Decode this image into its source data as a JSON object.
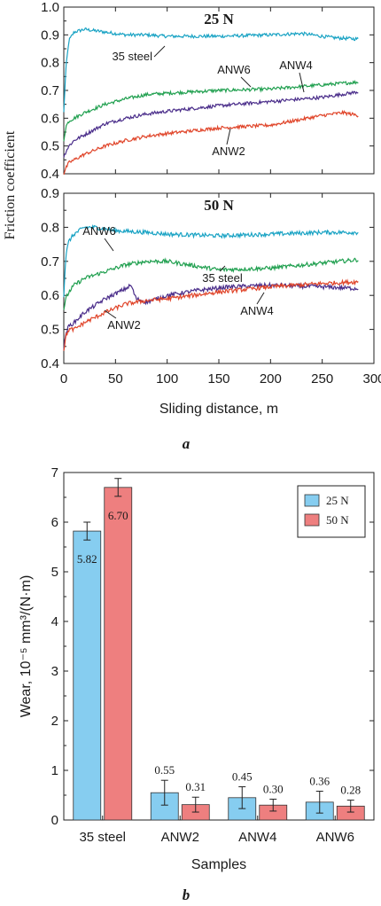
{
  "figure": {
    "panel_a_label": "a",
    "panel_b_label": "b"
  },
  "chart_data": [
    {
      "type": "line",
      "panel": "a",
      "xlabel": "Sliding distance, m",
      "ylabel": "Friction coefficient",
      "xlim": [
        0,
        300
      ],
      "xticks": [
        "0",
        "50",
        "100",
        "150",
        "200",
        "250",
        "300"
      ],
      "subplots": [
        {
          "title": "25 N",
          "ylim": [
            0.4,
            1.0
          ],
          "yticks": [
            "0.4",
            "0.5",
            "0.6",
            "0.7",
            "0.8",
            "0.9",
            "1.0"
          ],
          "series": [
            {
              "name": "35 steel",
              "color": "#1aa3c4",
              "x": [
                0,
                2,
                5,
                10,
                20,
                40,
                60,
                80,
                100,
                150,
                200,
                230,
                260,
                285
              ],
              "y": [
                0.62,
                0.78,
                0.88,
                0.91,
                0.92,
                0.91,
                0.9,
                0.9,
                0.895,
                0.895,
                0.9,
                0.905,
                0.89,
                0.885
              ]
            },
            {
              "name": "ANW6",
              "color": "#21a050",
              "x": [
                0,
                2,
                5,
                10,
                20,
                40,
                60,
                80,
                100,
                150,
                200,
                250,
                285
              ],
              "y": [
                0.52,
                0.57,
                0.59,
                0.6,
                0.62,
                0.65,
                0.67,
                0.685,
                0.69,
                0.7,
                0.705,
                0.72,
                0.73
              ]
            },
            {
              "name": "ANW4",
              "color": "#4a2d8a",
              "x": [
                0,
                2,
                5,
                10,
                20,
                40,
                60,
                80,
                100,
                150,
                200,
                250,
                285
              ],
              "y": [
                0.46,
                0.48,
                0.5,
                0.52,
                0.54,
                0.58,
                0.6,
                0.615,
                0.625,
                0.645,
                0.66,
                0.675,
                0.695
              ]
            },
            {
              "name": "ANW2",
              "color": "#e0452a",
              "x": [
                0,
                2,
                5,
                10,
                20,
                40,
                60,
                80,
                100,
                150,
                200,
                250,
                270,
                285
              ],
              "y": [
                0.4,
                0.42,
                0.44,
                0.45,
                0.47,
                0.5,
                0.52,
                0.535,
                0.545,
                0.565,
                0.575,
                0.61,
                0.62,
                0.61
              ]
            }
          ],
          "annotations": [
            "35 steel",
            "ANW6",
            "ANW4",
            "ANW2"
          ]
        },
        {
          "title": "50 N",
          "ylim": [
            0.4,
            0.9
          ],
          "yticks": [
            "0.4",
            "0.5",
            "0.6",
            "0.7",
            "0.8",
            "0.9"
          ],
          "series": [
            {
              "name": "35 steel",
              "color": "#1aa3c4",
              "x": [
                0,
                2,
                5,
                10,
                20,
                30,
                50,
                80,
                100,
                150,
                200,
                250,
                285
              ],
              "y": [
                0.6,
                0.72,
                0.76,
                0.78,
                0.8,
                0.8,
                0.79,
                0.785,
                0.78,
                0.775,
                0.78,
                0.785,
                0.785
              ]
            },
            {
              "name": "ANW6",
              "color": "#21a050",
              "x": [
                0,
                2,
                5,
                10,
                20,
                40,
                60,
                80,
                100,
                130,
                150,
                200,
                250,
                285
              ],
              "y": [
                0.56,
                0.59,
                0.61,
                0.63,
                0.65,
                0.67,
                0.69,
                0.7,
                0.7,
                0.685,
                0.675,
                0.68,
                0.695,
                0.705
              ]
            },
            {
              "name": "ANW4",
              "color": "#4a2d8a",
              "x": [
                0,
                2,
                5,
                10,
                20,
                40,
                60,
                65,
                70,
                80,
                100,
                130,
                160,
                200,
                250,
                285
              ],
              "y": [
                0.44,
                0.49,
                0.51,
                0.52,
                0.55,
                0.59,
                0.62,
                0.63,
                0.59,
                0.58,
                0.6,
                0.615,
                0.625,
                0.63,
                0.625,
                0.62
              ]
            },
            {
              "name": "ANW2",
              "color": "#e0452a",
              "x": [
                0,
                2,
                5,
                10,
                20,
                40,
                60,
                80,
                100,
                150,
                200,
                250,
                285
              ],
              "y": [
                0.44,
                0.48,
                0.5,
                0.5,
                0.52,
                0.55,
                0.575,
                0.585,
                0.59,
                0.61,
                0.625,
                0.635,
                0.64
              ]
            }
          ],
          "annotations": [
            "ANW6",
            "35 steel",
            "ANW2",
            "ANW4"
          ]
        }
      ]
    },
    {
      "type": "bar",
      "panel": "b",
      "categories": [
        "35 steel",
        "ANW2",
        "ANW4",
        "ANW6"
      ],
      "xlabel": "Samples",
      "ylabel": "Wear, 10⁻⁵ mm³/(N·m)",
      "ylim": [
        0,
        7
      ],
      "yticks": [
        "0",
        "1",
        "2",
        "3",
        "4",
        "5",
        "6",
        "7"
      ],
      "legend_position": "top-right",
      "series": [
        {
          "name": "25 N",
          "color": "#86cdf0",
          "values": [
            5.82,
            0.55,
            0.45,
            0.36
          ],
          "errors": [
            0.18,
            0.25,
            0.22,
            0.22
          ],
          "labels": [
            "5.82",
            "0.55",
            "0.45",
            "0.36"
          ]
        },
        {
          "name": "50 N",
          "color": "#ee7f7f",
          "values": [
            6.7,
            0.31,
            0.3,
            0.28
          ],
          "errors": [
            0.18,
            0.15,
            0.12,
            0.12
          ],
          "labels": [
            "6.70",
            "0.31",
            "0.30",
            "0.28"
          ]
        }
      ]
    }
  ]
}
